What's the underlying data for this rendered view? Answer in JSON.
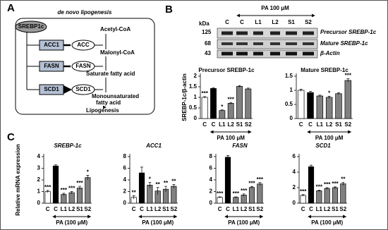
{
  "panel_labels": [
    "A",
    "B",
    "C"
  ],
  "diagram": {
    "title": "de novo lipogenesis",
    "regulator": "SREBP1c",
    "genes": [
      "ACC1",
      "FASN",
      "SCD1"
    ],
    "enzymes": [
      "ACC",
      "FASN",
      "SCD1"
    ],
    "metabolites": [
      "Acetyl-CoA",
      "Malonyl-CoA",
      "Saturate fatty acid",
      "Monounsaturated",
      "fatty acid",
      "Lipogenesis"
    ]
  },
  "blot": {
    "treatment": "PA 100 μM",
    "lanes": [
      "C",
      "C",
      "L1",
      "L2",
      "S1",
      "S2"
    ],
    "unit": "kDa",
    "markers": [
      "125",
      "68",
      "43"
    ],
    "bands": [
      "Precursor SREBP-1c",
      "Mature SREBP-1c",
      "β-Actin"
    ]
  },
  "chart_data": [
    {
      "type": "bar",
      "title": "Precursor SREBP-1c",
      "ylabel": "SREBP-1c/β-actin",
      "xlabel": "PA 100 μM",
      "categories": [
        "C",
        "C",
        "L1",
        "L2",
        "S1",
        "S2"
      ],
      "values": [
        1.0,
        1.42,
        0.38,
        0.72,
        1.52,
        1.4
      ],
      "errors": [
        0.04,
        0.04,
        0.03,
        0.04,
        0.04,
        0.04
      ],
      "annotations": [
        "***",
        null,
        "*",
        "***",
        null,
        null
      ],
      "colors": [
        "#ffffff",
        "#000000",
        "#808080",
        "#808080",
        "#808080",
        "#808080"
      ],
      "ylim": [
        0,
        2
      ],
      "yticks": [
        0,
        0.5,
        1,
        1.5,
        2
      ]
    },
    {
      "type": "bar",
      "title": "Mature SREBP-1c",
      "xlabel": "PA 100 μM",
      "categories": [
        "C",
        "C",
        "L1",
        "L2",
        "S1",
        "S2"
      ],
      "values": [
        1.0,
        0.92,
        0.8,
        0.75,
        0.88,
        1.35
      ],
      "errors": [
        0.04,
        0.04,
        0.03,
        0.04,
        0.03,
        0.06
      ],
      "annotations": [
        null,
        null,
        null,
        "*",
        null,
        "***"
      ],
      "colors": [
        "#ffffff",
        "#000000",
        "#808080",
        "#808080",
        "#808080",
        "#808080"
      ],
      "ylim": [
        0,
        1.5
      ],
      "yticks": [
        0,
        0.5,
        1,
        1.5
      ]
    },
    {
      "type": "bar",
      "title": "SREBP-1c",
      "ylabel": "Relative mRNA expression",
      "xlabel": "PA (100 μM)",
      "categories": [
        "C",
        "C",
        "L1",
        "L2",
        "S1",
        "S2"
      ],
      "values": [
        1.0,
        3.2,
        0.75,
        0.9,
        1.3,
        2.2
      ],
      "errors": [
        0.1,
        0.1,
        0.1,
        0.1,
        0.15,
        0.2
      ],
      "annotations": [
        "***",
        null,
        "***",
        "***",
        "***",
        "*"
      ],
      "colors": [
        "#ffffff",
        "#000000",
        "#808080",
        "#808080",
        "#808080",
        "#808080"
      ],
      "ylim": [
        0,
        4
      ],
      "yticks": [
        0,
        1,
        2,
        3,
        4
      ]
    },
    {
      "type": "bar",
      "title": "ACC1",
      "xlabel": "PA (100 μM)",
      "categories": [
        "C",
        "C",
        "L1",
        "L2",
        "S1",
        "S2"
      ],
      "values": [
        1.0,
        5.2,
        3.1,
        2.1,
        2.4,
        2.9
      ],
      "errors": [
        0.3,
        1.0,
        0.5,
        0.6,
        0.5,
        0.3
      ],
      "annotations": [
        "**",
        null,
        "*",
        "**",
        "**",
        "**"
      ],
      "colors": [
        "#ffffff",
        "#000000",
        "#808080",
        "#808080",
        "#808080",
        "#808080"
      ],
      "ylim": [
        0,
        8
      ],
      "yticks": [
        0,
        2,
        4,
        6,
        8
      ]
    },
    {
      "type": "bar",
      "title": "FASN",
      "xlabel": "PA (100 μM)",
      "categories": [
        "C",
        "C",
        "L1",
        "L2",
        "S1",
        "S2"
      ],
      "values": [
        1.0,
        7.9,
        1.0,
        1.4,
        2.7,
        3.3
      ],
      "errors": [
        0.1,
        0.3,
        0.1,
        0.2,
        0.15,
        0.25
      ],
      "annotations": [
        "***",
        null,
        "***",
        "***",
        "***",
        "***"
      ],
      "colors": [
        "#ffffff",
        "#000000",
        "#808080",
        "#808080",
        "#808080",
        "#808080"
      ],
      "ylim": [
        0,
        8
      ],
      "yticks": [
        0,
        2,
        4,
        6,
        8
      ]
    },
    {
      "type": "bar",
      "title": "SCD1",
      "xlabel": "PA (100 μM)",
      "categories": [
        "C",
        "C",
        "L1",
        "L2",
        "S1",
        "S2"
      ],
      "values": [
        1.0,
        4.7,
        1.6,
        1.9,
        2.0,
        2.5
      ],
      "errors": [
        0.1,
        0.2,
        0.1,
        0.1,
        0.1,
        0.2
      ],
      "annotations": [
        "***",
        null,
        "***",
        "***",
        "***",
        "**"
      ],
      "colors": [
        "#ffffff",
        "#000000",
        "#808080",
        "#808080",
        "#808080",
        "#808080"
      ],
      "ylim": [
        0,
        6
      ],
      "yticks": [
        0,
        2,
        4,
        6
      ]
    }
  ]
}
